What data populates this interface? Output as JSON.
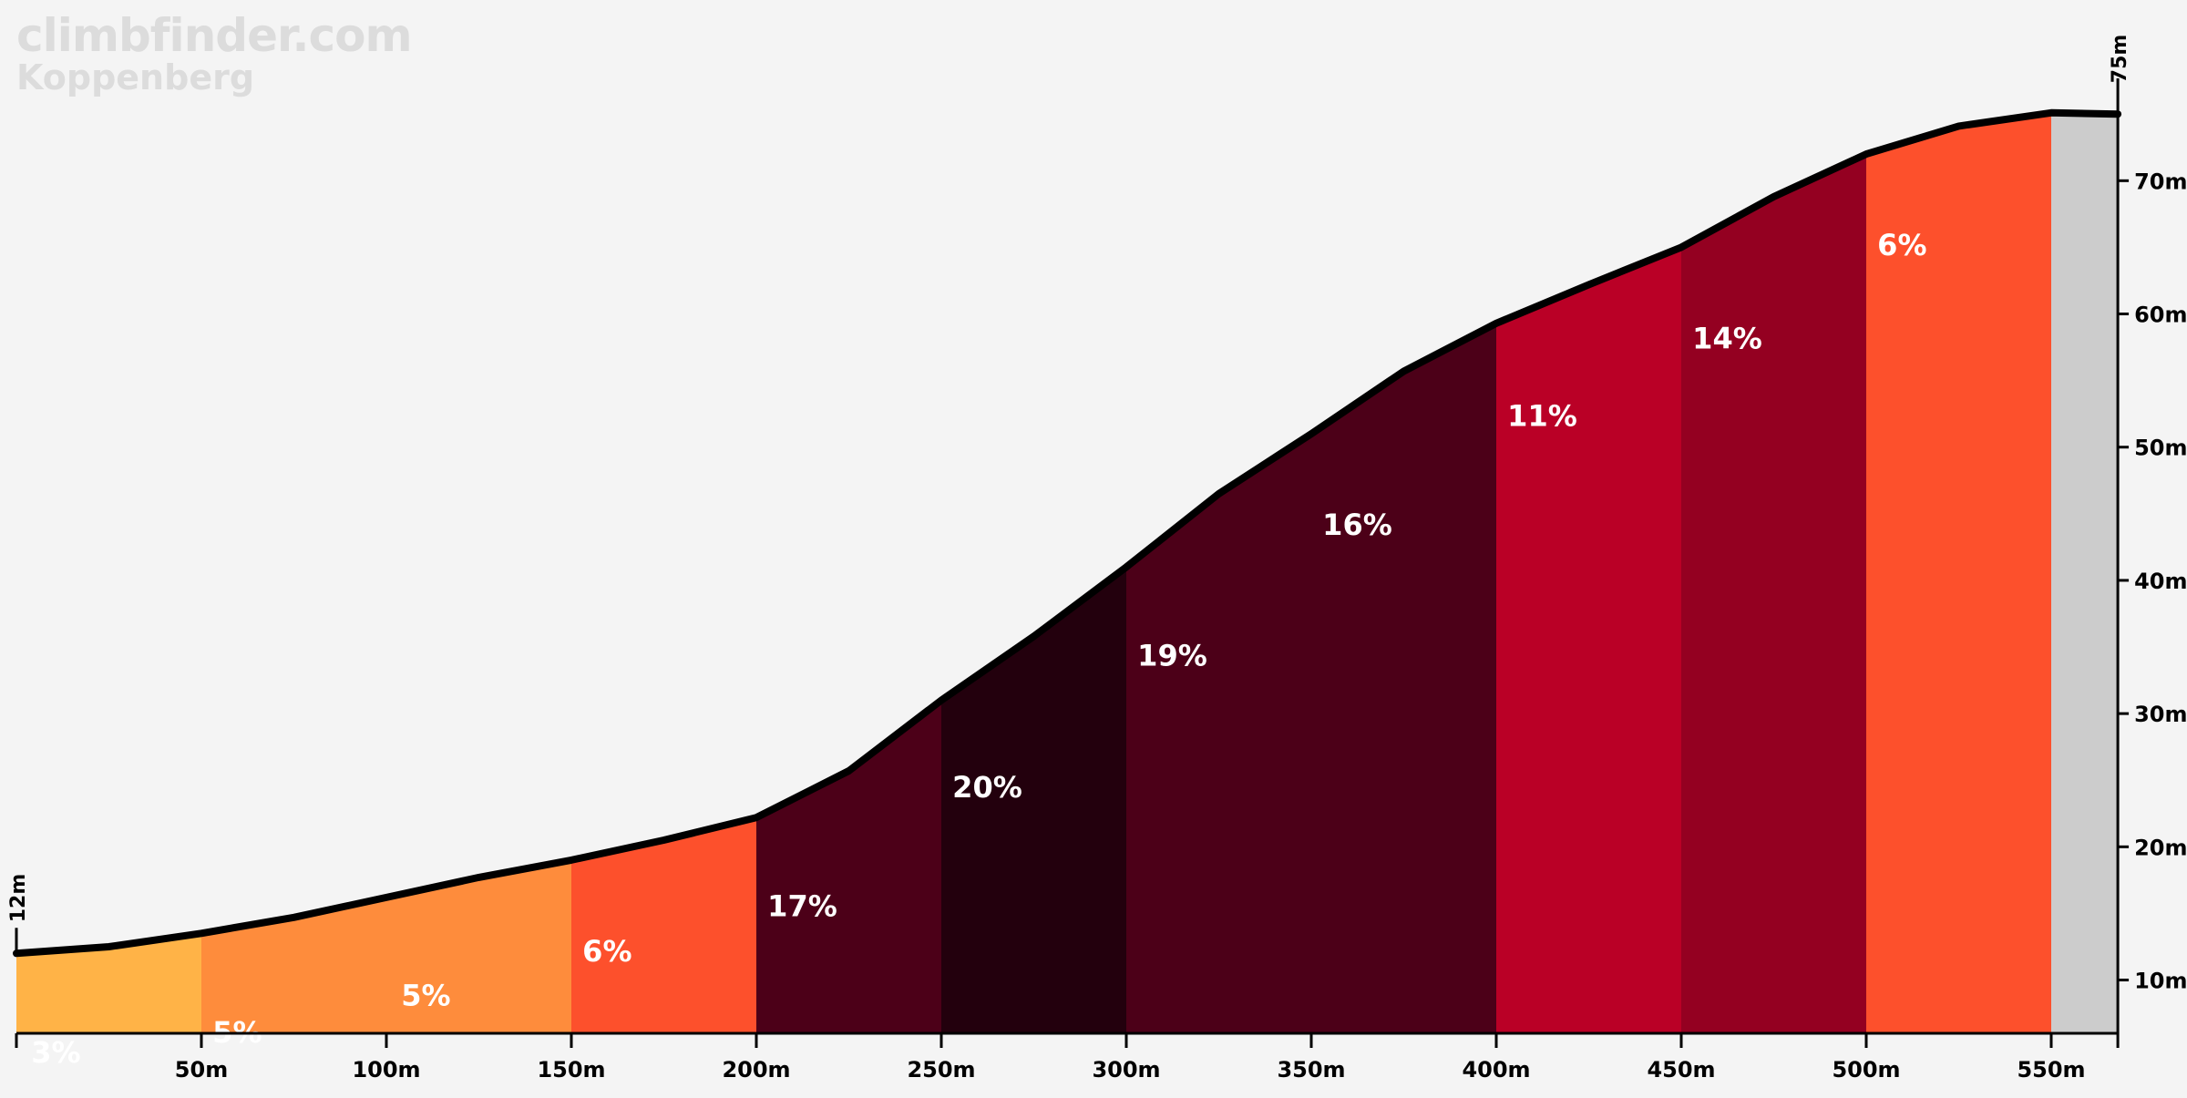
{
  "watermark": {
    "site": "climbfinder.com",
    "climb_name": "Koppenberg"
  },
  "chart_data": {
    "type": "area",
    "title": "",
    "xlabel": "",
    "ylabel": "",
    "x_unit": "m",
    "y_unit": "m",
    "xlim": [
      0,
      568
    ],
    "ylim": [
      6,
      75
    ],
    "x_ticks": [
      50,
      100,
      150,
      200,
      250,
      300,
      350,
      400,
      450,
      500,
      550
    ],
    "x_tick_labels": [
      "50m",
      "100m",
      "150m",
      "200m",
      "250m",
      "300m",
      "350m",
      "400m",
      "450m",
      "500m",
      "550m"
    ],
    "y_ticks": [
      10,
      20,
      30,
      40,
      50,
      60,
      70
    ],
    "y_tick_labels": [
      "10m",
      "20m",
      "30m",
      "40m",
      "50m",
      "60m",
      "70m"
    ],
    "start_label": "12m",
    "end_label": "75m",
    "profile": {
      "x": [
        0,
        25,
        50,
        75,
        100,
        125,
        150,
        175,
        200,
        225,
        250,
        275,
        300,
        325,
        350,
        375,
        400,
        425,
        450,
        475,
        500,
        525,
        550,
        568
      ],
      "y": [
        12,
        12.5,
        13.5,
        14.7,
        16.2,
        17.7,
        19,
        20.5,
        22.2,
        25.7,
        31,
        35.8,
        41,
        46.5,
        51,
        55.7,
        59.3,
        62.2,
        65,
        68.8,
        72,
        74.1,
        75.1,
        75
      ]
    },
    "segments": [
      {
        "x0": 0,
        "x1": 50,
        "grade": "3%",
        "color": "#ffb347",
        "label_x": 4,
        "label_y": 3.8
      },
      {
        "x0": 50,
        "x1": 150,
        "grade": "5%",
        "color": "#fe8c3c",
        "label_x": 53,
        "label_y": 5.3
      },
      {
        "x0": 50,
        "x1": 150,
        "grade": "5%",
        "color": null,
        "label_x": 104,
        "label_y": 8.1
      },
      {
        "x0": 150,
        "x1": 200,
        "grade": "6%",
        "color": "#fd502c",
        "label_x": 153,
        "label_y": 11.4
      },
      {
        "x0": 200,
        "x1": 250,
        "grade": "17%",
        "color": "#4c0018",
        "label_x": 203,
        "label_y": 14.8
      },
      {
        "x0": 250,
        "x1": 300,
        "grade": "20%",
        "color": "#23000d",
        "label_x": 253,
        "label_y": 23.7
      },
      {
        "x0": 300,
        "x1": 400,
        "grade": "19%",
        "color": "#4c0018",
        "label_x": 303,
        "label_y": 33.6
      },
      {
        "x0": 300,
        "x1": 400,
        "grade": "16%",
        "color": null,
        "label_x": 353,
        "label_y": 43.4
      },
      {
        "x0": 400,
        "x1": 450,
        "grade": "11%",
        "color": "#ba0026",
        "label_x": 403,
        "label_y": 51.6
      },
      {
        "x0": 450,
        "x1": 500,
        "grade": "14%",
        "color": "#940021",
        "label_x": 453,
        "label_y": 57.4
      },
      {
        "x0": 500,
        "x1": 550,
        "grade": "6%",
        "color": "#fd502c",
        "label_x": 503,
        "label_y": 64.4
      },
      {
        "x0": 550,
        "x1": 568,
        "grade": "",
        "color": "#cccccc",
        "label_x": null,
        "label_y": null
      }
    ]
  }
}
